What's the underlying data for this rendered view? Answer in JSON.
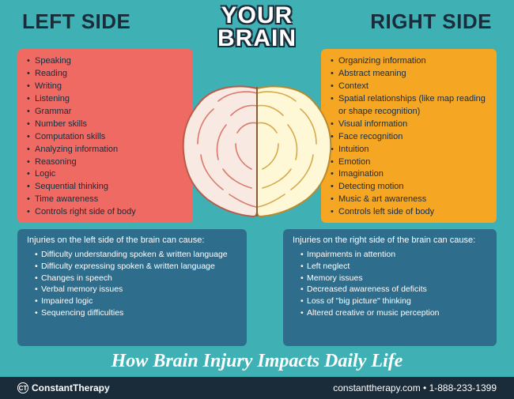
{
  "title_line1": "YOUR",
  "title_line2": "BRAIN",
  "left_side_label": "LEFT SIDE",
  "right_side_label": "RIGHT SIDE",
  "colors": {
    "background": "#3fb1b5",
    "left_box": "#ef6a63",
    "right_box": "#f5a623",
    "injury_box": "#2f6d8c",
    "footer": "#1a2b3a",
    "text_dark": "#1a2b3a",
    "text_light": "#ffffff",
    "brain_left_fill": "#f8e9e2",
    "brain_left_stroke": "#d97a6a",
    "brain_right_fill": "#fff8d6",
    "brain_right_stroke": "#d6a94a"
  },
  "left_functions": [
    "Speaking",
    "Reading",
    "Writing",
    "Listening",
    "Grammar",
    "Number skills",
    "Computation skills",
    "Analyzing information",
    "Reasoning",
    "Logic",
    "Sequential thinking",
    "Time awareness",
    "Controls right side of body"
  ],
  "right_functions": [
    "Organizing information",
    "Abstract meaning",
    "Context",
    "Spatial relationships (like map reading or shape recognition)",
    "Visual information",
    "Face recognition",
    "Intuition",
    "Emotion",
    "Imagination",
    "Detecting motion",
    "Music & art awareness",
    "Controls left side of body"
  ],
  "left_injury_title": "Injuries on the left side of the brain can cause:",
  "left_injuries": [
    "Difficulty understanding spoken & written language",
    "Difficulty expressing spoken & written language",
    "Changes in speech",
    "Verbal memory issues",
    "Impaired logic",
    "Sequencing difficulties"
  ],
  "right_injury_title": "Injuries on the right side of the brain can cause:",
  "right_injuries": [
    "Impairments in attention",
    "Left neglect",
    "Memory issues",
    "Decreased awareness of deficits",
    "Loss of \"big picture\" thinking",
    "Altered creative or music perception"
  ],
  "bottom_headline": "How Brain Injury Impacts Daily Life",
  "footer": {
    "brand": "ConstantTherapy",
    "contact": "constanttherapy.com • 1-888-233-1399"
  }
}
